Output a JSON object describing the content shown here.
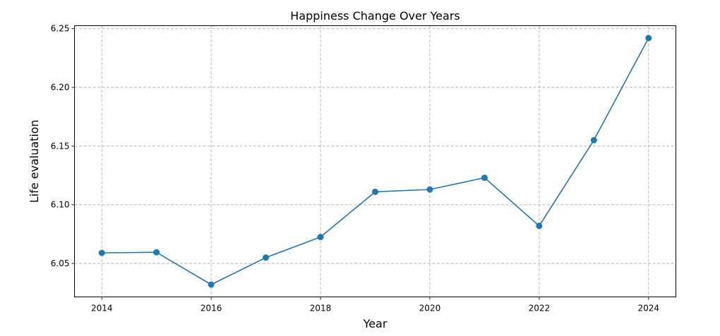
{
  "chart_data": {
    "type": "line",
    "title": "Happiness Change Over Years",
    "xlabel": "Year",
    "ylabel": "Life evaluation",
    "x": [
      2014,
      2015,
      2016,
      2017,
      2018,
      2019,
      2020,
      2021,
      2022,
      2023,
      2024
    ],
    "series": [
      {
        "values": [
          6.059,
          6.0595,
          6.032,
          6.055,
          6.0725,
          6.111,
          6.113,
          6.123,
          6.082,
          6.155,
          6.242
        ],
        "color": "#1f77b4",
        "marker": "circle"
      }
    ],
    "xlim": [
      2013.5,
      2024.5
    ],
    "ylim": [
      6.0215,
      6.2525
    ],
    "xticks": [
      2014,
      2016,
      2018,
      2020,
      2022,
      2024
    ],
    "xtick_labels": [
      "2014",
      "2016",
      "2018",
      "2020",
      "2022",
      "2024"
    ],
    "yticks": [
      6.05,
      6.1,
      6.15,
      6.2,
      6.25
    ],
    "ytick_labels": [
      "6.05",
      "6.10",
      "6.15",
      "6.20",
      "6.25"
    ],
    "grid": true,
    "grid_style": "dashed"
  }
}
